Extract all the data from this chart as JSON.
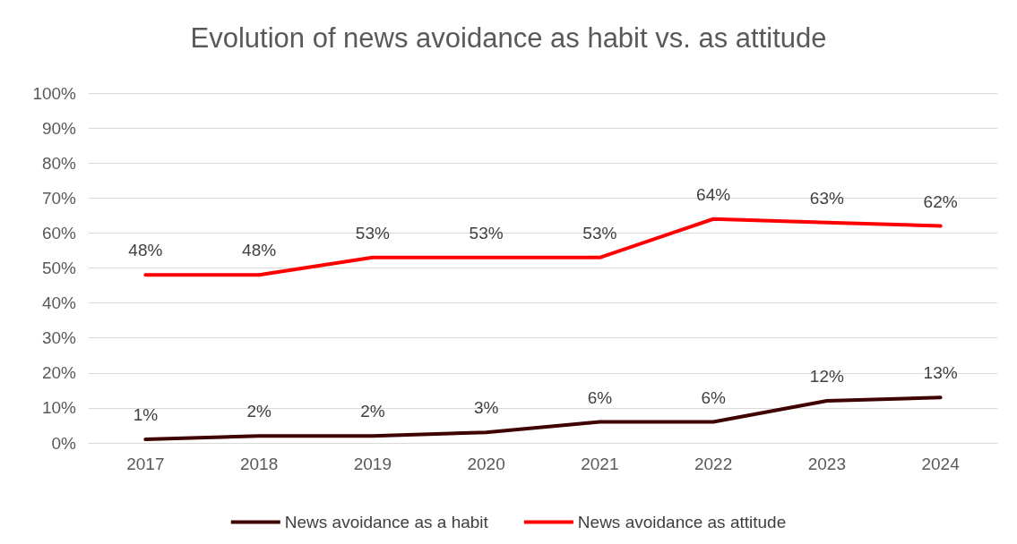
{
  "chart_data": {
    "type": "line",
    "title": "Evolution of news avoidance as habit vs. as attitude",
    "categories": [
      "2017",
      "2018",
      "2019",
      "2020",
      "2021",
      "2022",
      "2023",
      "2024"
    ],
    "series": [
      {
        "name": "News avoidance as a habit",
        "color": "#3f0000",
        "values": [
          1,
          2,
          2,
          3,
          6,
          6,
          12,
          13
        ],
        "value_labels": [
          "1%",
          "2%",
          "2%",
          "3%",
          "6%",
          "6%",
          "12%",
          "13%"
        ]
      },
      {
        "name": "News avoidance as attitude",
        "color": "#ff0000",
        "values": [
          48,
          48,
          53,
          53,
          53,
          64,
          63,
          62
        ],
        "value_labels": [
          "48%",
          "48%",
          "53%",
          "53%",
          "53%",
          "64%",
          "63%",
          "62%"
        ]
      }
    ],
    "ylim": [
      0,
      100
    ],
    "yticks": [
      {
        "value": 0,
        "label": "0%"
      },
      {
        "value": 10,
        "label": "10%"
      },
      {
        "value": 20,
        "label": "20%"
      },
      {
        "value": 30,
        "label": "30%"
      },
      {
        "value": 40,
        "label": "40%"
      },
      {
        "value": 50,
        "label": "50%"
      },
      {
        "value": 60,
        "label": "60%"
      },
      {
        "value": 70,
        "label": "70%"
      },
      {
        "value": 80,
        "label": "80%"
      },
      {
        "value": 90,
        "label": "90%"
      },
      {
        "value": 100,
        "label": "100%"
      }
    ],
    "grid": "y",
    "legend": "bottom",
    "marker": "none",
    "line_style": "solid"
  }
}
